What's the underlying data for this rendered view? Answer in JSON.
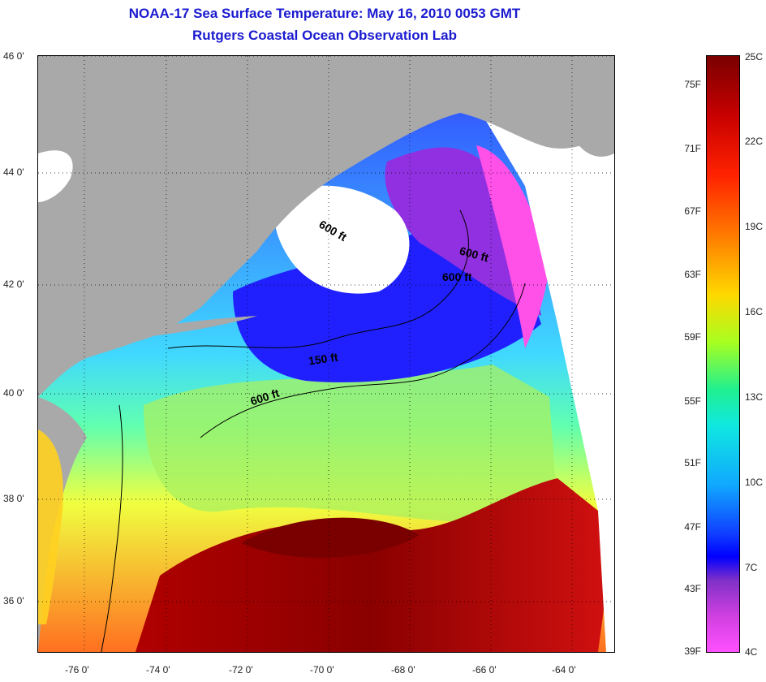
{
  "title_line1": "NOAA-17 Sea Surface Temperature:  May 16, 2010 0053 GMT",
  "title_line2": "Rutgers Coastal Ocean Observation Lab",
  "latitude_labels": [
    "46 0'",
    "44 0'",
    "42 0'",
    "40 0'",
    "38 0'",
    "36 0'"
  ],
  "longitude_labels": [
    "-76 0'",
    "-74 0'",
    "-72 0'",
    "-70 0'",
    "-68 0'",
    "-66 0'",
    "-64 0'"
  ],
  "contour_labels": [
    "600 ft",
    "600 ft",
    "600 ft",
    "150 ft",
    "600 ft"
  ],
  "colorbar": {
    "fahrenheit_labels": [
      "75F",
      "71F",
      "67F",
      "63F",
      "59F",
      "55F",
      "51F",
      "47F",
      "43F",
      "39F"
    ],
    "celsius_labels": [
      "25C",
      "22C",
      "19C",
      "16C",
      "13C",
      "10C",
      "7C",
      "4C"
    ]
  },
  "colors": {
    "land": "#a9a9a9",
    "cloud": "#ffffff",
    "title": "#1a1ad0"
  }
}
